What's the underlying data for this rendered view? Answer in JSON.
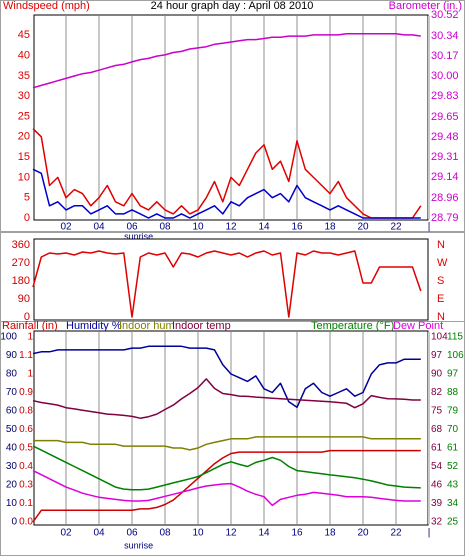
{
  "chart_data": [
    {
      "type": "line",
      "title": "24 hour graph day : April 08 2010",
      "ylabel": "Windspeed (mph)",
      "y2label": "Barometer (in.)",
      "x": [
        0,
        0.5,
        1,
        1.5,
        2,
        2.5,
        3,
        3.5,
        4,
        4.5,
        5,
        5.5,
        6,
        6.5,
        7,
        7.5,
        8,
        8.5,
        9,
        9.5,
        10,
        10.5,
        11,
        11.5,
        12,
        12.5,
        13,
        13.5,
        14,
        14.5,
        15,
        15.5,
        16,
        16.5,
        17,
        17.5,
        18,
        18.5,
        19,
        19.5,
        20,
        20.5,
        21,
        21.5,
        22,
        22.5,
        23,
        23.5
      ],
      "xlim": [
        0,
        24
      ],
      "xticks": [
        {
          "value": 2,
          "label": "02"
        },
        {
          "value": 4,
          "label": "04"
        },
        {
          "value": 6,
          "label": "06"
        },
        {
          "value": 8,
          "label": "08"
        },
        10,
        12,
        14,
        16,
        18,
        20,
        22,
        {
          "value": 24,
          "label": "|"
        }
      ],
      "ylim": [
        0,
        50
      ],
      "yticks": [
        0,
        5,
        10,
        15,
        20,
        25,
        30,
        35,
        40,
        45
      ],
      "y2lim": [
        28.79,
        30.52
      ],
      "y2ticks": [
        28.79,
        28.96,
        29.14,
        29.31,
        29.48,
        29.65,
        29.83,
        {
          "value": 30,
          "label": "30.00"
        },
        30.17,
        30.34,
        30.52
      ],
      "grid": true,
      "annotations": [
        {
          "text": "sunrise",
          "x": 6.4
        }
      ],
      "series": [
        {
          "color": "#cc00cc",
          "axis": "y2",
          "values": [
            29.9,
            29.92,
            29.94,
            29.96,
            29.98,
            30.0,
            30.02,
            30.03,
            30.05,
            30.07,
            30.09,
            30.1,
            30.12,
            30.14,
            30.15,
            30.17,
            30.18,
            30.2,
            30.21,
            30.23,
            30.24,
            30.25,
            30.27,
            30.28,
            30.29,
            30.3,
            30.31,
            30.31,
            30.32,
            30.33,
            30.33,
            30.34,
            30.34,
            30.34,
            30.35,
            30.35,
            30.35,
            30.35,
            30.36,
            30.36,
            30.36,
            30.36,
            30.36,
            30.36,
            30.36,
            30.35,
            30.35,
            30.34
          ]
        },
        {
          "color": "#e00000",
          "axis": "y",
          "values": [
            22,
            20,
            8,
            10,
            5,
            7,
            6,
            3,
            5,
            8,
            4,
            3,
            6,
            3,
            2,
            4,
            2,
            1,
            3,
            1,
            2,
            5,
            9,
            4,
            10,
            8,
            12,
            16,
            18,
            12,
            14,
            9,
            19,
            12,
            10,
            8,
            6,
            9,
            5,
            3,
            1,
            0,
            0,
            0,
            0,
            0,
            0,
            3
          ]
        },
        {
          "color": "#0000cc",
          "axis": "y",
          "values": [
            12,
            11,
            3,
            4,
            2,
            3,
            3,
            1,
            2,
            3,
            1,
            1,
            2,
            1,
            0,
            1,
            0,
            0,
            1,
            0,
            1,
            2,
            3,
            1,
            4,
            3,
            5,
            6,
            7,
            5,
            6,
            4,
            8,
            5,
            4,
            3,
            2,
            3,
            2,
            1,
            0,
            0,
            0,
            0,
            0,
            0,
            0,
            0
          ]
        }
      ]
    },
    {
      "type": "line",
      "x": [
        0,
        0.5,
        1,
        1.5,
        2,
        2.5,
        3,
        3.5,
        4,
        4.5,
        5,
        5.5,
        6,
        6.5,
        7,
        7.5,
        8,
        8.5,
        9,
        9.5,
        10,
        10.5,
        11,
        11.5,
        12,
        12.5,
        13,
        13.5,
        14,
        14.5,
        15,
        15.5,
        16,
        16.5,
        17,
        17.5,
        18,
        18.5,
        19,
        19.5,
        20,
        20.5,
        21,
        21.5,
        22,
        22.5,
        23,
        23.5
      ],
      "xlim": [
        0,
        24
      ],
      "ylim": [
        0,
        360
      ],
      "yticks": [
        0,
        90,
        180,
        270,
        360
      ],
      "y2lim": [
        0,
        360
      ],
      "y2ticks": [
        {
          "value": 0,
          "label": "N"
        },
        {
          "value": 90,
          "label": "E"
        },
        {
          "value": 180,
          "label": "S"
        },
        {
          "value": 270,
          "label": "W"
        },
        {
          "value": 360,
          "label": "N"
        }
      ],
      "series": [
        {
          "color": "#e00000",
          "axis": "y",
          "values": [
            150,
            300,
            320,
            315,
            320,
            310,
            325,
            320,
            330,
            320,
            315,
            320,
            0,
            300,
            320,
            310,
            320,
            250,
            320,
            315,
            300,
            320,
            330,
            320,
            310,
            320,
            300,
            320,
            330,
            310,
            320,
            0,
            320,
            310,
            330,
            320,
            320,
            310,
            320,
            330,
            170,
            170,
            250,
            250,
            250,
            250,
            250,
            130
          ]
        }
      ]
    },
    {
      "type": "line",
      "x": [
        0,
        0.5,
        1,
        1.5,
        2,
        2.5,
        3,
        3.5,
        4,
        4.5,
        5,
        5.5,
        6,
        6.5,
        7,
        7.5,
        8,
        8.5,
        9,
        9.5,
        10,
        10.5,
        11,
        11.5,
        12,
        12.5,
        13,
        13.5,
        14,
        14.5,
        15,
        15.5,
        16,
        16.5,
        17,
        17.5,
        18,
        18.5,
        19,
        19.5,
        20,
        20.5,
        21,
        21.5,
        22,
        22.5,
        23,
        23.5
      ],
      "xlim": [
        0,
        24
      ],
      "xticks": [
        {
          "value": 2,
          "label": "02"
        },
        {
          "value": 4,
          "label": "04"
        },
        {
          "value": 6,
          "label": "06"
        },
        {
          "value": 8,
          "label": "08"
        },
        10,
        12,
        14,
        16,
        18,
        20,
        22,
        {
          "value": 24,
          "label": "|"
        }
      ],
      "ylim": [
        0,
        100
      ],
      "yticks": [
        0,
        10,
        20,
        30,
        40,
        50,
        60,
        70,
        80,
        90,
        100
      ],
      "y2lim": [
        32,
        104
      ],
      "y2ticks": [
        32,
        {
          "value": 39.2,
          "label": "39"
        },
        {
          "value": 46.4,
          "label": "46"
        },
        {
          "value": 53.6,
          "label": "54"
        },
        {
          "value": 60.8,
          "label": "61"
        },
        68,
        {
          "value": 75.2,
          "label": "75"
        },
        {
          "value": 82.4,
          "label": "82"
        },
        {
          "value": 89.6,
          "label": "90"
        },
        {
          "value": 96.8,
          "label": "97"
        },
        104
      ],
      "y3lim": [
        25,
        115
      ],
      "y3ticks": [
        25,
        34,
        43,
        52,
        61,
        70,
        79,
        88,
        97,
        106,
        115
      ],
      "y4lim": [
        0,
        1.27
      ],
      "y4ticks": [
        {
          "value": 0,
          "label": "0.0"
        },
        {
          "value": 0.127,
          "label": "0.1"
        },
        {
          "value": 0.254,
          "label": "0.3"
        },
        {
          "value": 0.381,
          "label": "0.4"
        },
        {
          "value": 0.508,
          "label": "0.5"
        },
        {
          "value": 0.635,
          "label": "0.6"
        },
        {
          "value": 0.762,
          "label": "0.8"
        },
        {
          "value": 0.889,
          "label": "0.9"
        },
        {
          "value": 1.016,
          "label": "1"
        },
        {
          "value": 1.143,
          "label": "1.1"
        },
        {
          "value": 1.27,
          "label": "1"
        }
      ],
      "grid": true,
      "annotations": [
        {
          "text": "sunrise",
          "x": 6.4
        }
      ],
      "series": [
        {
          "name": "Rainfall (in)",
          "color": "#cc0000",
          "axis": "y4",
          "values": [
            0,
            0.08,
            0.08,
            0.08,
            0.08,
            0.08,
            0.08,
            0.08,
            0.08,
            0.08,
            0.08,
            0.08,
            0.08,
            0.09,
            0.09,
            0.1,
            0.12,
            0.15,
            0.2,
            0.25,
            0.3,
            0.35,
            0.4,
            0.44,
            0.47,
            0.48,
            0.48,
            0.48,
            0.48,
            0.48,
            0.48,
            0.48,
            0.48,
            0.48,
            0.48,
            0.48,
            0.49,
            0.49,
            0.49,
            0.49,
            0.49,
            0.49,
            0.49,
            0.49,
            0.49,
            0.49,
            0.49,
            0.49
          ]
        },
        {
          "name": "Humidity %",
          "color": "#000099",
          "axis": "y",
          "values": [
            91,
            92,
            92,
            93,
            93,
            93,
            93,
            93,
            93,
            93,
            93,
            93,
            94,
            94,
            95,
            95,
            95,
            95,
            95,
            94,
            94,
            94,
            93,
            85,
            80,
            78,
            76,
            79,
            72,
            70,
            75,
            65,
            62,
            72,
            75,
            70,
            68,
            70,
            72,
            68,
            70,
            80,
            85,
            86,
            86,
            88,
            88,
            88
          ]
        },
        {
          "name": "Indoor hum",
          "color": "#808000",
          "axis": "y",
          "values": [
            44,
            44,
            44,
            44,
            43,
            43,
            43,
            42,
            42,
            42,
            42,
            41,
            41,
            41,
            41,
            41,
            41,
            40,
            40,
            39,
            40,
            42,
            43,
            44,
            45,
            45,
            45,
            46,
            46,
            46,
            46,
            46,
            46,
            46,
            46,
            46,
            46,
            46,
            46,
            46,
            46,
            45,
            45,
            45,
            45,
            45,
            45,
            45
          ]
        },
        {
          "name": "Indoor temp",
          "color": "#800040",
          "axis": "y2",
          "values": [
            79.2,
            78.5,
            78,
            77.5,
            76.5,
            76,
            75.5,
            75,
            74.5,
            74,
            73.8,
            73.5,
            73.1,
            72.4,
            73,
            74,
            75.8,
            77.5,
            79.9,
            82,
            84.3,
            87.7,
            84,
            82,
            81.6,
            81,
            80.9,
            80.6,
            80.4,
            80.2,
            80,
            79.8,
            79.6,
            79.4,
            79.2,
            79,
            78.8,
            78.5,
            78.2,
            76.5,
            78,
            81.2,
            80.5,
            80,
            79.9,
            79.8,
            79.5,
            79.5
          ]
        },
        {
          "name": "Temperature (°F)",
          "color": "#008000",
          "axis": "y3",
          "values": [
            61.9,
            60,
            58,
            56,
            54,
            52,
            50,
            48,
            46,
            44,
            42,
            41,
            40.7,
            40.7,
            41,
            42,
            43,
            44,
            45,
            46,
            47.1,
            49,
            51,
            53,
            54.3,
            53,
            52,
            54,
            55,
            56.4,
            55,
            52,
            50,
            49.5,
            49,
            48.5,
            47.9,
            47.5,
            47,
            46.5,
            45.8,
            45,
            44,
            43,
            42.5,
            42,
            41.8,
            41.6
          ]
        },
        {
          "name": "Dew Point",
          "color": "#dd00dd",
          "axis": "y3",
          "values": [
            50,
            48,
            46,
            44,
            42,
            40.5,
            39,
            38,
            37,
            36.5,
            36,
            35.5,
            35.2,
            35.2,
            35.5,
            36.5,
            37.5,
            38.5,
            39.5,
            40.5,
            41.6,
            42.5,
            43,
            43.5,
            43.7,
            42,
            40,
            38.5,
            37.3,
            33.1,
            36,
            37,
            38,
            38.5,
            39.4,
            39,
            38.5,
            38,
            37.3,
            37.3,
            37.3,
            37,
            36.5,
            36,
            35.5,
            35.2,
            35.2,
            35.2
          ]
        }
      ]
    }
  ]
}
